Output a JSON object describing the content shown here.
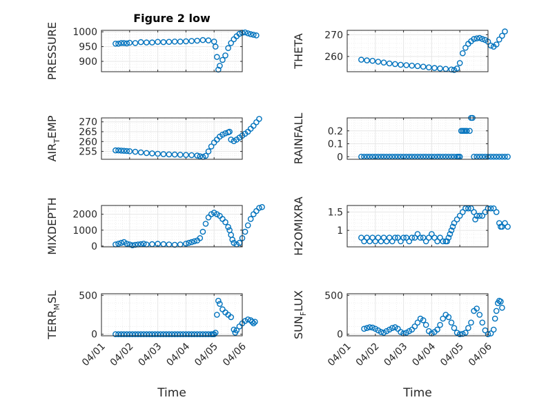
{
  "colors": {
    "marker": "#0072BD",
    "axis": "#262626",
    "grid": "#e6e6e6",
    "minorGrid": "#ebebeb"
  },
  "chart_data": [
    {
      "type": "scatter",
      "title": "Figure 2 low",
      "ylabel": "PRESSURE",
      "ylim": [
        865,
        1005
      ],
      "yticks": [
        900,
        950,
        1000
      ],
      "xticks": [],
      "xlabel": "",
      "series": [
        {
          "x": [
            0.5,
            0.6,
            0.7,
            0.8,
            0.9,
            1.0,
            1.2,
            1.4,
            1.6,
            1.8,
            2.0,
            2.2,
            2.4,
            2.6,
            2.8,
            3.0,
            3.2,
            3.4,
            3.6,
            3.8,
            4.0,
            4.05,
            4.1,
            4.15,
            4.2,
            4.3,
            4.4,
            4.5,
            4.6,
            4.7,
            4.8,
            4.9,
            5.0,
            5.1,
            5.2,
            5.3,
            5.4,
            5.5
          ],
          "y": [
            960,
            960,
            962,
            962,
            961,
            963,
            962,
            965,
            964,
            964,
            966,
            965,
            966,
            967,
            967,
            968,
            969,
            970,
            972,
            971,
            967,
            950,
            915,
            872,
            885,
            905,
            920,
            945,
            962,
            975,
            985,
            993,
            997,
            998,
            995,
            992,
            990,
            988
          ]
        }
      ]
    },
    {
      "type": "scatter",
      "title": "",
      "ylabel": "THETA",
      "ylim": [
        253,
        272
      ],
      "yticks": [
        260,
        270
      ],
      "xticks": [],
      "xlabel": "",
      "series": [
        {
          "x": [
            0.5,
            0.7,
            0.9,
            1.1,
            1.3,
            1.5,
            1.7,
            1.9,
            2.1,
            2.3,
            2.5,
            2.7,
            2.9,
            3.1,
            3.3,
            3.5,
            3.7,
            3.8,
            3.9,
            4.0,
            4.1,
            4.2,
            4.3,
            4.4,
            4.5,
            4.6,
            4.7,
            4.8,
            4.9,
            5.0,
            5.1,
            5.2,
            5.3,
            5.4,
            5.5,
            5.6
          ],
          "y": [
            258.5,
            258.2,
            258.0,
            257.6,
            257.2,
            256.8,
            256.5,
            256.2,
            256.0,
            255.8,
            255.6,
            255.3,
            255.0,
            254.7,
            254.5,
            254.3,
            254.0,
            253.8,
            254.5,
            257.0,
            261.5,
            264.0,
            265.8,
            267.0,
            268.0,
            268.3,
            268.5,
            268.0,
            267.6,
            266.8,
            265.0,
            264.5,
            265.5,
            267.8,
            269.5,
            271.5
          ]
        }
      ]
    },
    {
      "type": "scatter",
      "title": "",
      "ylabel": "AIR_TEMP",
      "ylim": [
        251,
        272
      ],
      "yticks": [
        255,
        260,
        265,
        270
      ],
      "xticks": [],
      "xlabel": "",
      "series": [
        {
          "x": [
            0.5,
            0.6,
            0.7,
            0.8,
            0.9,
            1.0,
            1.2,
            1.4,
            1.6,
            1.8,
            2.0,
            2.2,
            2.4,
            2.6,
            2.8,
            3.0,
            3.2,
            3.4,
            3.5,
            3.6,
            3.7,
            3.8,
            3.9,
            4.0,
            4.1,
            4.2,
            4.3,
            4.4,
            4.5,
            4.55,
            4.6,
            4.7,
            4.8,
            4.9,
            5.0,
            5.1,
            5.2,
            5.3,
            5.4,
            5.5,
            5.6
          ],
          "y": [
            255.5,
            255.5,
            255.4,
            255.3,
            255.2,
            255.1,
            254.8,
            254.5,
            254.2,
            254.0,
            253.8,
            253.6,
            253.5,
            253.4,
            253.3,
            253.2,
            253.1,
            252.9,
            252.5,
            252.2,
            252.8,
            255.0,
            257.5,
            259.5,
            261.0,
            262.5,
            263.5,
            264.2,
            264.7,
            265.0,
            261.0,
            260.2,
            261.0,
            262.0,
            263.0,
            264.0,
            265.0,
            266.5,
            268.0,
            269.8,
            271.5
          ]
        }
      ]
    },
    {
      "type": "scatter",
      "title": "",
      "ylabel": "RAINFALL",
      "ylim": [
        -0.02,
        0.3
      ],
      "yticks": [
        0,
        0.1,
        0.2
      ],
      "xticks": [],
      "xlabel": "",
      "series": [
        {
          "x": [
            0.5,
            0.6,
            0.7,
            0.8,
            0.9,
            1.0,
            1.1,
            1.2,
            1.3,
            1.4,
            1.5,
            1.6,
            1.7,
            1.8,
            1.9,
            2.0,
            2.1,
            2.2,
            2.3,
            2.4,
            2.5,
            2.6,
            2.7,
            2.8,
            2.9,
            3.0,
            3.1,
            3.2,
            3.3,
            3.4,
            3.5,
            3.6,
            3.7,
            3.8,
            3.9,
            3.95,
            4.0,
            4.05,
            4.1,
            4.15,
            4.2,
            4.25,
            4.35,
            4.4,
            4.45,
            4.5,
            4.6,
            4.7,
            4.8,
            4.9,
            5.0,
            5.1,
            5.2,
            5.3,
            5.4,
            5.5,
            5.6,
            5.7
          ],
          "y": [
            0,
            0,
            0,
            0,
            0,
            0,
            0,
            0,
            0,
            0,
            0,
            0,
            0,
            0,
            0,
            0,
            0,
            0,
            0,
            0,
            0,
            0,
            0,
            0,
            0,
            0,
            0,
            0,
            0,
            0,
            0,
            0,
            0,
            0,
            0,
            0,
            0,
            0.2,
            0.2,
            0.2,
            0.2,
            0.2,
            0.2,
            0.3,
            0.3,
            0,
            0,
            0,
            0,
            0,
            0,
            0,
            0,
            0,
            0,
            0,
            0,
            0
          ]
        }
      ]
    },
    {
      "type": "scatter",
      "title": "",
      "ylabel": "MIXDEPTH",
      "ylim": [
        -50,
        2550
      ],
      "yticks": [
        0,
        1000,
        2000
      ],
      "xticks": [],
      "xlabel": "",
      "series": [
        {
          "x": [
            0.5,
            0.6,
            0.7,
            0.8,
            0.9,
            1.0,
            1.1,
            1.2,
            1.3,
            1.4,
            1.5,
            1.6,
            1.8,
            2.0,
            2.2,
            2.4,
            2.6,
            2.8,
            3.0,
            3.1,
            3.2,
            3.3,
            3.4,
            3.5,
            3.6,
            3.7,
            3.8,
            3.9,
            4.0,
            4.1,
            4.2,
            4.3,
            4.4,
            4.5,
            4.55,
            4.6,
            4.65,
            4.7,
            4.8,
            4.9,
            5.0,
            5.1,
            5.2,
            5.3,
            5.4,
            5.5,
            5.6,
            5.7
          ],
          "y": [
            100,
            150,
            200,
            250,
            150,
            100,
            50,
            80,
            100,
            120,
            150,
            100,
            120,
            140,
            120,
            100,
            80,
            100,
            150,
            200,
            250,
            300,
            350,
            500,
            900,
            1400,
            1800,
            2000,
            2100,
            2000,
            1900,
            1700,
            1500,
            1200,
            1000,
            700,
            400,
            200,
            100,
            200,
            500,
            900,
            1300,
            1700,
            2000,
            2200,
            2400,
            2450
          ]
        }
      ]
    },
    {
      "type": "scatter",
      "title": "",
      "ylabel": "H2OMIXRA",
      "ylim": [
        0.55,
        1.68
      ],
      "yticks": [
        1,
        1.5
      ],
      "xticks": [],
      "xlabel": "",
      "series": [
        {
          "x": [
            0.5,
            0.6,
            0.7,
            0.8,
            0.9,
            1.0,
            1.1,
            1.2,
            1.3,
            1.4,
            1.5,
            1.6,
            1.7,
            1.8,
            1.9,
            2.0,
            2.1,
            2.2,
            2.3,
            2.4,
            2.5,
            2.6,
            2.7,
            2.8,
            2.9,
            3.0,
            3.1,
            3.2,
            3.3,
            3.4,
            3.5,
            3.55,
            3.6,
            3.65,
            3.7,
            3.75,
            3.8,
            3.9,
            4.0,
            4.1,
            4.2,
            4.3,
            4.4,
            4.5,
            4.55,
            4.6,
            4.7,
            4.8,
            4.9,
            5.0,
            5.1,
            5.2,
            5.3,
            5.4,
            5.45,
            5.5,
            5.6,
            5.7
          ],
          "y": [
            0.8,
            0.7,
            0.8,
            0.7,
            0.8,
            0.7,
            0.8,
            0.7,
            0.8,
            0.7,
            0.8,
            0.7,
            0.8,
            0.8,
            0.7,
            0.8,
            0.8,
            0.7,
            0.8,
            0.8,
            0.9,
            0.8,
            0.8,
            0.7,
            0.8,
            0.9,
            0.8,
            0.7,
            0.8,
            0.7,
            0.7,
            0.7,
            0.8,
            0.9,
            1.0,
            1.1,
            1.2,
            1.3,
            1.4,
            1.5,
            1.6,
            1.6,
            1.6,
            1.5,
            1.3,
            1.4,
            1.4,
            1.4,
            1.5,
            1.6,
            1.6,
            1.6,
            1.5,
            1.2,
            1.1,
            1.1,
            1.2,
            1.1
          ]
        }
      ]
    },
    {
      "type": "scatter",
      "title": "",
      "ylabel": "TERR_MSL",
      "ylim": [
        -20,
        520
      ],
      "yticks": [
        0,
        500
      ],
      "xlabel": "Time",
      "xticks": [
        "04/01",
        "04/02",
        "04/03",
        "04/04",
        "04/05",
        "04/06"
      ],
      "series": [
        {
          "x": [
            0.5,
            0.6,
            0.7,
            0.8,
            0.9,
            1.0,
            1.1,
            1.2,
            1.3,
            1.4,
            1.5,
            1.6,
            1.7,
            1.8,
            1.9,
            2.0,
            2.1,
            2.2,
            2.3,
            2.4,
            2.5,
            2.6,
            2.7,
            2.8,
            2.9,
            3.0,
            3.1,
            3.2,
            3.3,
            3.4,
            3.5,
            3.6,
            3.7,
            3.8,
            3.9,
            3.95,
            4.0,
            4.05,
            4.1,
            4.15,
            4.2,
            4.3,
            4.4,
            4.5,
            4.6,
            4.7,
            4.75,
            4.8,
            4.9,
            5.0,
            5.1,
            5.2,
            5.3,
            5.35,
            5.4,
            5.45
          ],
          "y": [
            0,
            0,
            0,
            0,
            0,
            0,
            0,
            0,
            0,
            0,
            0,
            0,
            0,
            0,
            0,
            0,
            0,
            0,
            0,
            0,
            0,
            0,
            0,
            0,
            0,
            0,
            0,
            0,
            0,
            0,
            0,
            0,
            0,
            0,
            0,
            0,
            0,
            20,
            250,
            430,
            390,
            320,
            280,
            250,
            220,
            60,
            20,
            50,
            100,
            140,
            170,
            190,
            180,
            160,
            140,
            160
          ]
        }
      ]
    },
    {
      "type": "scatter",
      "title": "",
      "ylabel": "SUN_FLUX",
      "ylim": [
        -20,
        520
      ],
      "yticks": [
        0,
        500
      ],
      "xlabel": "Time",
      "xticks": [
        "04/01",
        "04/02",
        "04/03",
        "04/04",
        "04/05",
        "04/06"
      ],
      "series": [
        {
          "x": [
            0.6,
            0.7,
            0.8,
            0.9,
            1.0,
            1.1,
            1.2,
            1.3,
            1.4,
            1.5,
            1.6,
            1.7,
            1.8,
            1.9,
            2.0,
            2.1,
            2.2,
            2.3,
            2.4,
            2.5,
            2.6,
            2.7,
            2.8,
            2.9,
            3.0,
            3.1,
            3.2,
            3.3,
            3.4,
            3.5,
            3.6,
            3.7,
            3.8,
            3.9,
            4.0,
            4.1,
            4.2,
            4.3,
            4.4,
            4.5,
            4.6,
            4.7,
            4.8,
            4.9,
            5.0,
            5.1,
            5.2,
            5.25,
            5.3,
            5.35,
            5.4,
            5.45,
            5.5
          ],
          "y": [
            70,
            80,
            90,
            85,
            70,
            50,
            30,
            20,
            40,
            60,
            80,
            90,
            70,
            30,
            10,
            20,
            40,
            60,
            100,
            150,
            200,
            180,
            120,
            40,
            10,
            30,
            60,
            120,
            200,
            250,
            220,
            150,
            80,
            20,
            0,
            5,
            20,
            80,
            150,
            300,
            330,
            250,
            150,
            50,
            0,
            10,
            60,
            200,
            300,
            400,
            430,
            420,
            340
          ]
        }
      ]
    }
  ]
}
